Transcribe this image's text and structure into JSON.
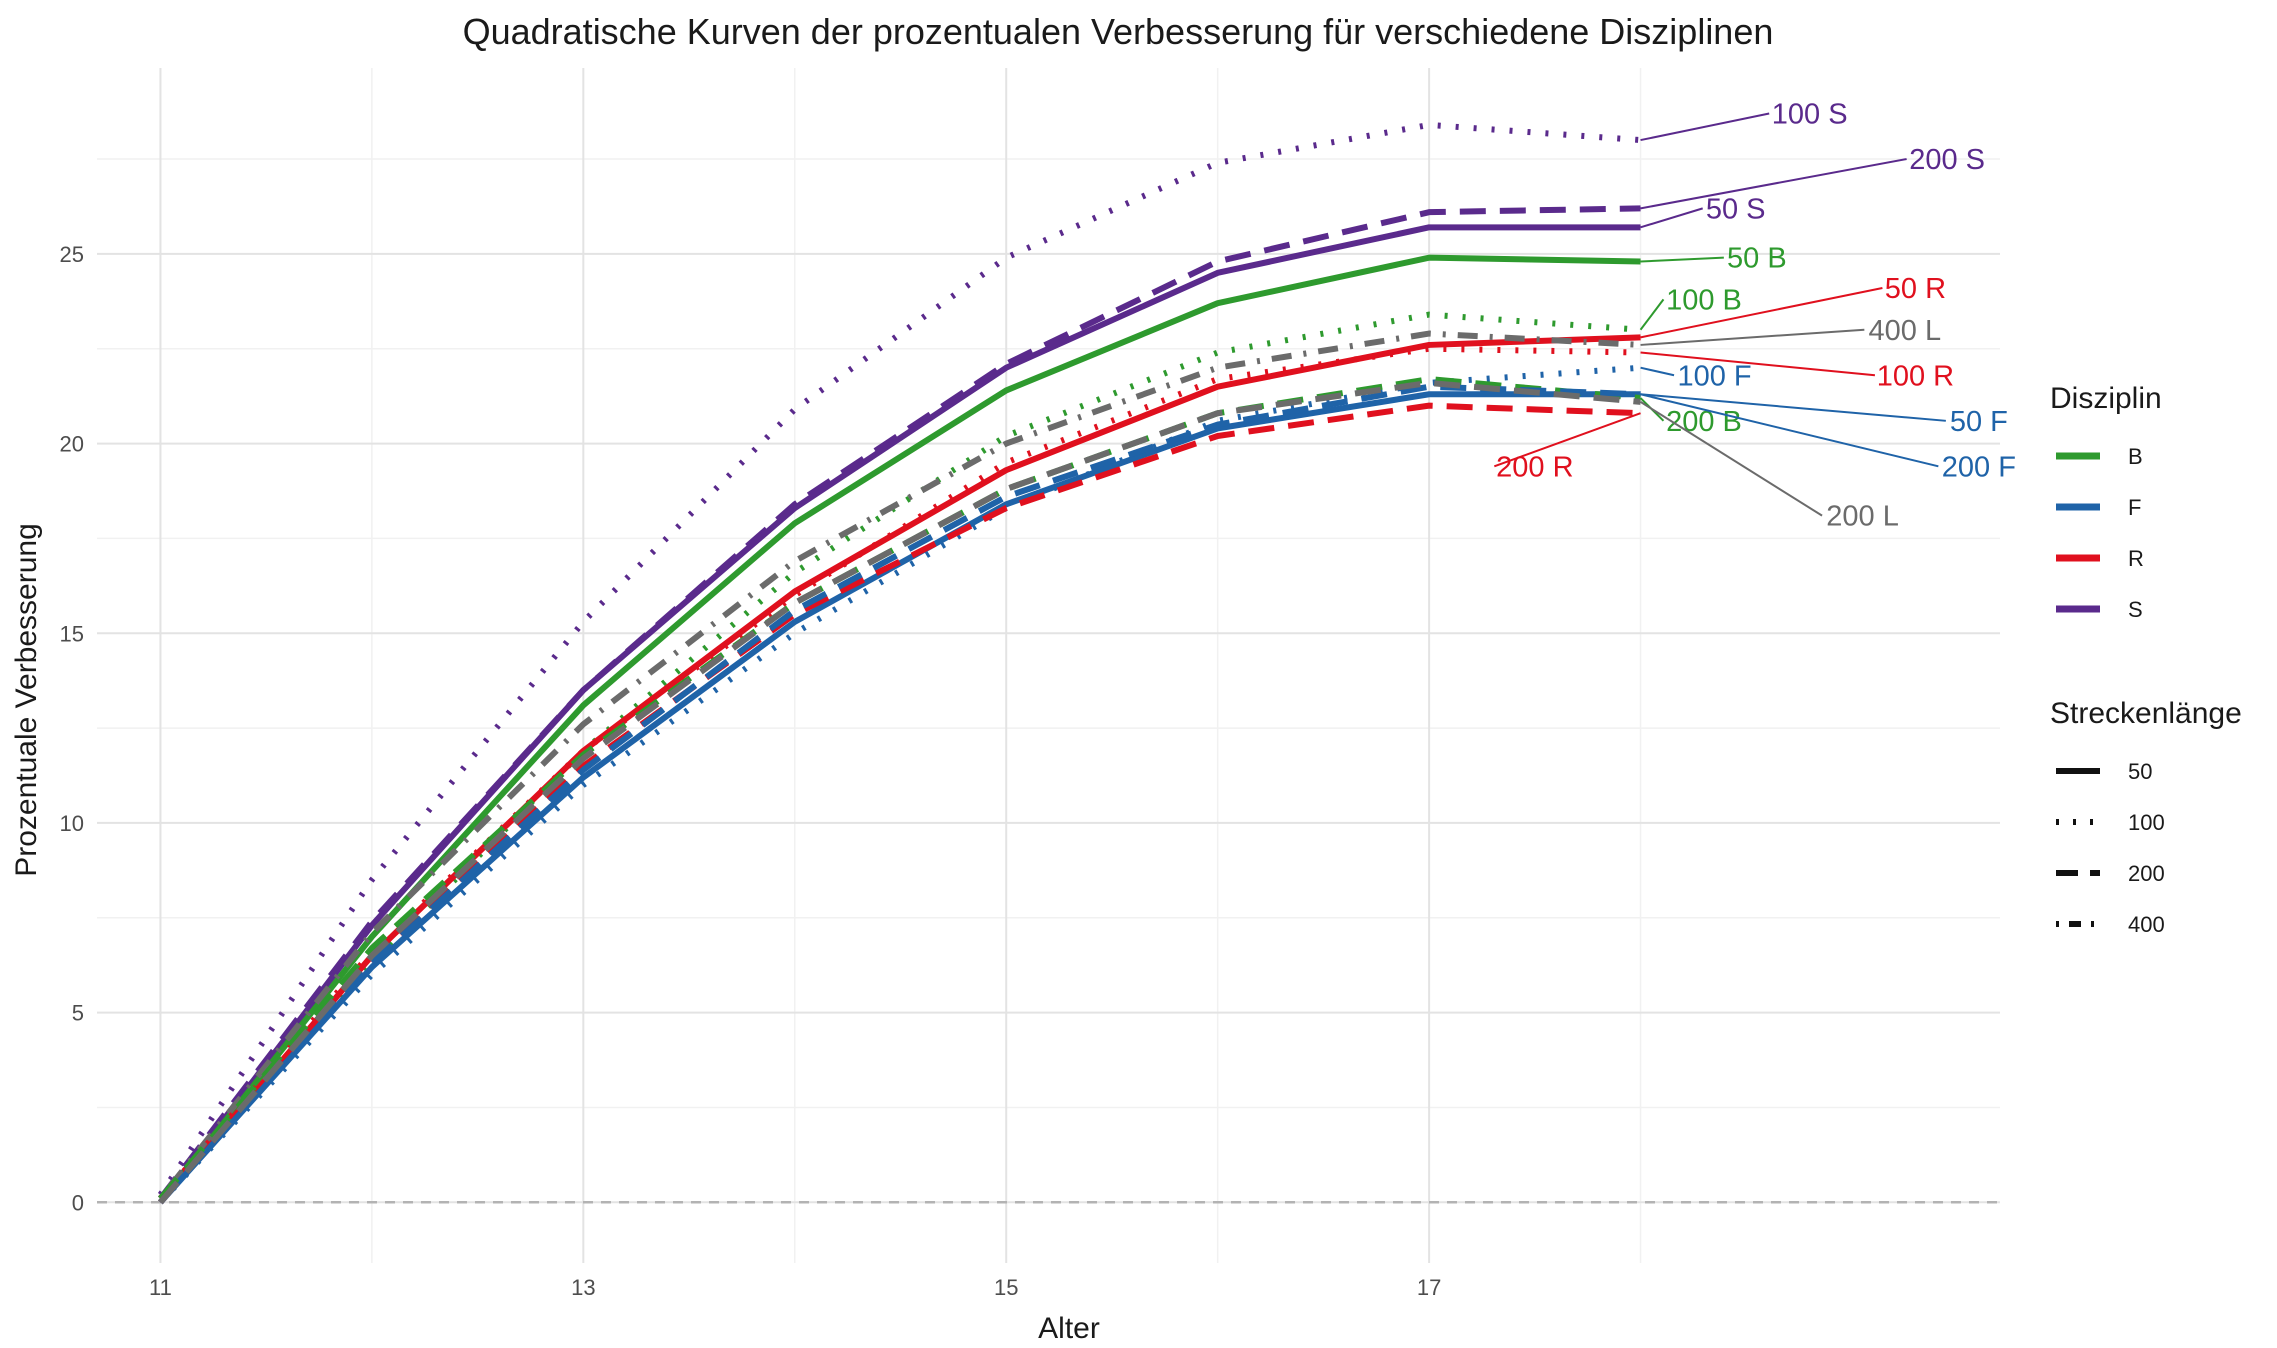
{
  "chart_data": {
    "type": "line",
    "title": "Quadratische Kurven der prozentualen Verbesserung für verschiedene Disziplinen",
    "xlabel": "Alter",
    "ylabel": "Prozentuale Verbesserung",
    "x": [
      11,
      12,
      13,
      14,
      15,
      16,
      17,
      18
    ],
    "x_ticks": [
      11,
      13,
      15,
      17
    ],
    "y_ticks": [
      0,
      5,
      10,
      15,
      20,
      25
    ],
    "xlim": [
      10.7,
      19.7
    ],
    "ylim": [
      -1.6,
      29.9
    ],
    "grid": true,
    "reference_line": {
      "y": 0,
      "style": "dashed"
    },
    "legend": {
      "placement": "right",
      "color_title": "Disziplin",
      "color_entries": [
        {
          "label": "B",
          "color": "#2e9a2e"
        },
        {
          "label": "F",
          "color": "#1f63a8"
        },
        {
          "label": "R",
          "color": "#e0101e"
        },
        {
          "label": "S",
          "color": "#5a2a8c"
        }
      ],
      "linetype_title": "Streckenlänge",
      "linetype_entries": [
        {
          "label": "50",
          "linetype": "solid"
        },
        {
          "label": "100",
          "linetype": "dotted"
        },
        {
          "label": "200",
          "linetype": "dashed"
        },
        {
          "label": "400",
          "linetype": "dotdash"
        }
      ]
    },
    "series": [
      {
        "label": "100 S",
        "discipline": "S",
        "distance": "100",
        "values": [
          0.2,
          8.5,
          15.3,
          20.9,
          24.9,
          27.4,
          28.4,
          28.0
        ],
        "label_pos": [
          18.8,
          28.7
        ]
      },
      {
        "label": "200 S",
        "discipline": "S",
        "distance": "200",
        "values": [
          0.1,
          7.4,
          13.5,
          18.4,
          22.1,
          24.8,
          26.1,
          26.2
        ],
        "label_pos": [
          19.45,
          27.5
        ]
      },
      {
        "label": "50 S",
        "discipline": "S",
        "distance": "50",
        "values": [
          0.0,
          7.3,
          13.5,
          18.3,
          22.0,
          24.5,
          25.7,
          25.7
        ],
        "label_pos": [
          18.45,
          26.2
        ]
      },
      {
        "label": "50 B",
        "discipline": "B",
        "distance": "50",
        "values": [
          0.0,
          7.0,
          13.1,
          17.9,
          21.4,
          23.7,
          24.9,
          24.8
        ],
        "label_pos": [
          18.55,
          24.9
        ]
      },
      {
        "label": "100 B",
        "discipline": "B",
        "distance": "100",
        "values": [
          0.1,
          6.3,
          11.9,
          16.6,
          20.2,
          22.4,
          23.4,
          23.0
        ],
        "label_pos": [
          18.3,
          23.8
        ]
      },
      {
        "label": "50 R",
        "discipline": "R",
        "distance": "50",
        "values": [
          0.0,
          6.5,
          11.9,
          16.1,
          19.3,
          21.5,
          22.6,
          22.8
        ],
        "label_pos": [
          19.3,
          24.1
        ]
      },
      {
        "label": "400 L",
        "discipline": "L",
        "distance": "400",
        "values": [
          0.1,
          7.1,
          12.6,
          16.9,
          20.0,
          22.0,
          22.9,
          22.6
        ],
        "label_pos": [
          19.25,
          23.0
        ]
      },
      {
        "label": "100 R",
        "discipline": "R",
        "distance": "100",
        "values": [
          0.1,
          6.6,
          11.9,
          16.0,
          19.5,
          21.7,
          22.5,
          22.4
        ],
        "label_pos": [
          19.3,
          21.8
        ]
      },
      {
        "label": "100 F",
        "discipline": "F",
        "distance": "100",
        "values": [
          0.0,
          6.0,
          11.0,
          15.0,
          18.3,
          20.6,
          21.6,
          22.0
        ],
        "label_pos": [
          18.35,
          21.8
        ]
      },
      {
        "label": "50 F",
        "discipline": "F",
        "distance": "50",
        "values": [
          0.0,
          6.2,
          11.2,
          15.3,
          18.4,
          20.4,
          21.3,
          21.3
        ],
        "label_pos": [
          19.6,
          20.6
        ]
      },
      {
        "label": "200 B",
        "discipline": "B",
        "distance": "200",
        "values": [
          0.1,
          6.7,
          11.8,
          15.8,
          18.8,
          20.8,
          21.7,
          21.2
        ],
        "label_pos": [
          18.3,
          20.6
        ]
      },
      {
        "label": "200 R",
        "discipline": "R",
        "distance": "200",
        "values": [
          0.0,
          6.4,
          11.5,
          15.5,
          18.3,
          20.2,
          21.0,
          20.8
        ],
        "label_pos": [
          17.5,
          19.4
        ]
      },
      {
        "label": "200 F",
        "discipline": "F",
        "distance": "200",
        "values": [
          0.0,
          6.3,
          11.4,
          15.6,
          18.6,
          20.5,
          21.5,
          21.3
        ],
        "label_pos": [
          19.6,
          19.4
        ]
      },
      {
        "label": "200 L",
        "discipline": "L",
        "distance": "200",
        "values": [
          0.0,
          6.5,
          11.7,
          15.8,
          18.8,
          20.8,
          21.6,
          21.1
        ],
        "label_pos": [
          19.05,
          18.1
        ]
      }
    ],
    "colors": {
      "B": "#2e9a2e",
      "F": "#1f63a8",
      "R": "#e0101e",
      "S": "#5a2a8c",
      "L": "#6b6b6b"
    }
  }
}
